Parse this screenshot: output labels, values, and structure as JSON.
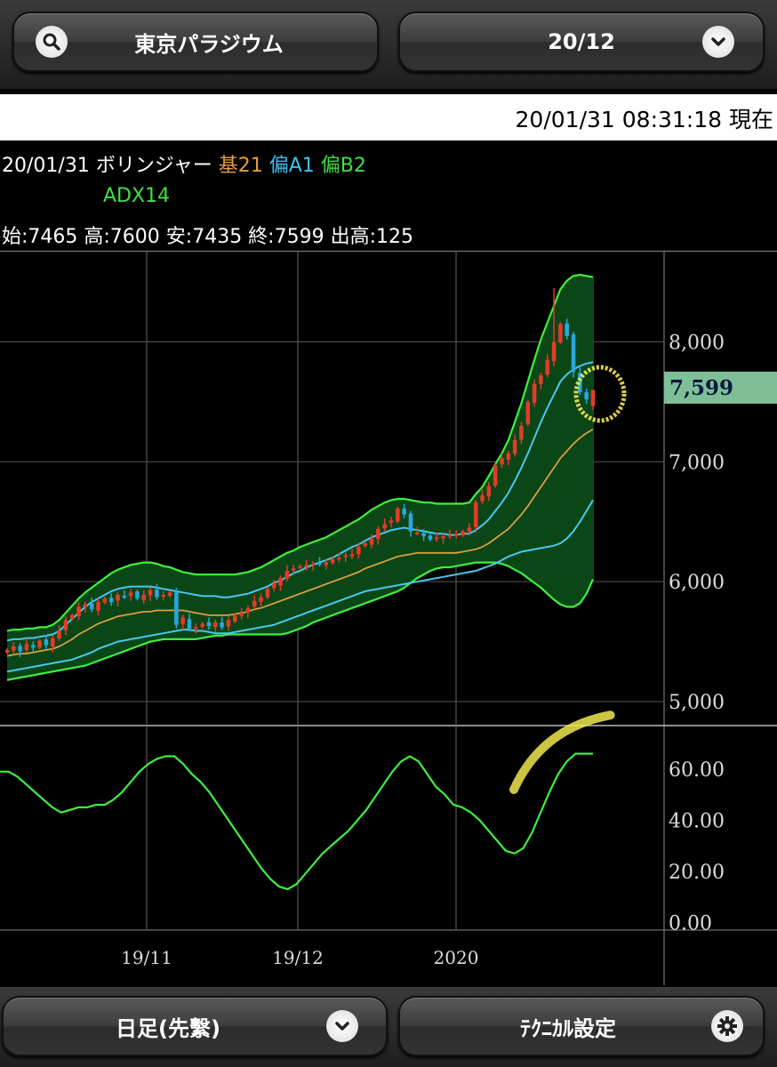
{
  "header": {
    "stock_name": "東京パラジウム",
    "contract": "20/12",
    "search_icon": "search-icon",
    "dropdown_icon": "chevron-down-icon"
  },
  "timestamp": {
    "text": "20/01/31 08:31:18 現在"
  },
  "legend": {
    "date": "20/01/31",
    "indicator": "ボリンジャー",
    "base": "基21",
    "dev_a": "偏A1",
    "dev_b": "偏B2",
    "sub": "ADX14",
    "ohlc": "始:7465 高:7600 安:7435 終:7599 出高:125",
    "colors": {
      "base": "#e0a040",
      "dev_a": "#40c0f0",
      "dev_b": "#40e040",
      "sub": "#40e040"
    }
  },
  "chart_data": [
    {
      "type": "candlestick-bollinger",
      "price_axis_ticks": [
        "8,000",
        "7,000",
        "6,000",
        "5,000"
      ],
      "ylim": [
        4800,
        8760
      ],
      "last_price": "7,599",
      "x_ticks": [
        "19/11",
        "19/12",
        "2020"
      ],
      "last_candle": {
        "open": 7465,
        "high": 7600,
        "low": 7435,
        "close": 7599
      },
      "closes": [
        5430,
        5460,
        5420,
        5480,
        5450,
        5510,
        5470,
        5530,
        5590,
        5680,
        5720,
        5790,
        5810,
        5770,
        5830,
        5860,
        5830,
        5890,
        5880,
        5910,
        5860,
        5890,
        5930,
        5870,
        5890,
        5910,
        5640,
        5700,
        5610,
        5620,
        5650,
        5630,
        5660,
        5620,
        5680,
        5720,
        5740,
        5780,
        5840,
        5870,
        5940,
        5980,
        6030,
        6090,
        6110,
        6130,
        6140,
        6150,
        6150,
        6160,
        6190,
        6200,
        6220,
        6230,
        6290,
        6320,
        6360,
        6440,
        6480,
        6510,
        6610,
        6560,
        6420,
        6410,
        6380,
        6350,
        6370,
        6380,
        6390,
        6400,
        6420,
        6450,
        6660,
        6720,
        6800,
        6970,
        7030,
        7070,
        7180,
        7300,
        7500,
        7650,
        7720,
        7850,
        8000,
        8150,
        8050,
        7750,
        7580,
        7520,
        7599
      ],
      "upper_band": [
        5590,
        5600,
        5600,
        5610,
        5610,
        5620,
        5620,
        5640,
        5680,
        5740,
        5800,
        5860,
        5910,
        5950,
        5990,
        6030,
        6070,
        6100,
        6120,
        6140,
        6150,
        6160,
        6160,
        6150,
        6130,
        6120,
        6100,
        6080,
        6070,
        6060,
        6060,
        6060,
        6060,
        6060,
        6060,
        6060,
        6070,
        6080,
        6100,
        6120,
        6150,
        6180,
        6210,
        6240,
        6260,
        6290,
        6310,
        6330,
        6350,
        6370,
        6400,
        6430,
        6460,
        6490,
        6520,
        6560,
        6600,
        6630,
        6660,
        6680,
        6690,
        6690,
        6680,
        6670,
        6660,
        6660,
        6650,
        6650,
        6650,
        6650,
        6650,
        6660,
        6730,
        6790,
        6880,
        6980,
        7070,
        7180,
        7330,
        7490,
        7670,
        7850,
        8020,
        8160,
        8300,
        8440,
        8510,
        8550,
        8560,
        8550,
        8540
      ],
      "upper1": [
        5510,
        5520,
        5520,
        5530,
        5530,
        5540,
        5550,
        5560,
        5590,
        5640,
        5690,
        5740,
        5790,
        5830,
        5860,
        5890,
        5920,
        5940,
        5950,
        5960,
        5960,
        5960,
        5960,
        5950,
        5940,
        5930,
        5920,
        5910,
        5900,
        5890,
        5880,
        5880,
        5880,
        5870,
        5870,
        5880,
        5890,
        5900,
        5920,
        5940,
        5960,
        5990,
        6010,
        6040,
        6070,
        6090,
        6120,
        6140,
        6160,
        6180,
        6200,
        6230,
        6260,
        6290,
        6310,
        6340,
        6370,
        6390,
        6410,
        6430,
        6440,
        6450,
        6440,
        6430,
        6420,
        6410,
        6400,
        6400,
        6390,
        6390,
        6400,
        6400,
        6430,
        6470,
        6520,
        6590,
        6660,
        6740,
        6840,
        6950,
        7070,
        7200,
        7330,
        7450,
        7560,
        7670,
        7730,
        7770,
        7800,
        7820,
        7830
      ],
      "middle": [
        5380,
        5390,
        5400,
        5400,
        5410,
        5420,
        5430,
        5440,
        5460,
        5490,
        5520,
        5560,
        5590,
        5620,
        5650,
        5670,
        5690,
        5710,
        5720,
        5730,
        5740,
        5750,
        5750,
        5760,
        5760,
        5760,
        5760,
        5760,
        5750,
        5740,
        5730,
        5720,
        5720,
        5720,
        5720,
        5730,
        5740,
        5750,
        5770,
        5780,
        5800,
        5820,
        5840,
        5860,
        5880,
        5900,
        5920,
        5940,
        5960,
        5980,
        6000,
        6020,
        6040,
        6060,
        6080,
        6110,
        6130,
        6150,
        6170,
        6190,
        6210,
        6220,
        6230,
        6240,
        6240,
        6240,
        6240,
        6240,
        6240,
        6240,
        6250,
        6260,
        6270,
        6290,
        6320,
        6360,
        6400,
        6440,
        6500,
        6560,
        6630,
        6710,
        6790,
        6870,
        6950,
        7030,
        7090,
        7150,
        7200,
        7240,
        7270
      ],
      "lower1": [
        5250,
        5260,
        5270,
        5280,
        5290,
        5300,
        5310,
        5320,
        5330,
        5340,
        5350,
        5370,
        5390,
        5410,
        5440,
        5460,
        5480,
        5500,
        5510,
        5520,
        5530,
        5540,
        5550,
        5560,
        5570,
        5580,
        5590,
        5600,
        5600,
        5590,
        5590,
        5580,
        5570,
        5570,
        5570,
        5580,
        5590,
        5600,
        5610,
        5620,
        5630,
        5640,
        5660,
        5680,
        5700,
        5720,
        5740,
        5760,
        5780,
        5800,
        5820,
        5840,
        5860,
        5880,
        5900,
        5920,
        5930,
        5940,
        5950,
        5960,
        5970,
        5980,
        5990,
        6000,
        6010,
        6020,
        6030,
        6040,
        6050,
        6060,
        6070,
        6080,
        6090,
        6110,
        6130,
        6150,
        6180,
        6210,
        6230,
        6250,
        6260,
        6270,
        6280,
        6290,
        6300,
        6320,
        6360,
        6420,
        6500,
        6590,
        6680
      ],
      "lower_band": [
        5180,
        5190,
        5200,
        5210,
        5220,
        5230,
        5240,
        5250,
        5260,
        5270,
        5280,
        5290,
        5300,
        5320,
        5340,
        5360,
        5380,
        5400,
        5420,
        5440,
        5460,
        5480,
        5500,
        5510,
        5520,
        5520,
        5520,
        5520,
        5520,
        5520,
        5530,
        5540,
        5550,
        5550,
        5560,
        5560,
        5560,
        5560,
        5560,
        5560,
        5560,
        5560,
        5560,
        5570,
        5590,
        5610,
        5630,
        5660,
        5680,
        5700,
        5720,
        5740,
        5760,
        5780,
        5800,
        5820,
        5840,
        5860,
        5880,
        5900,
        5920,
        5950,
        5990,
        6030,
        6060,
        6090,
        6110,
        6120,
        6120,
        6130,
        6140,
        6150,
        6160,
        6160,
        6160,
        6160,
        6150,
        6130,
        6100,
        6070,
        6030,
        5990,
        5950,
        5900,
        5850,
        5810,
        5790,
        5790,
        5820,
        5900,
        6020
      ]
    },
    {
      "type": "line",
      "name": "ADX14",
      "ticks": [
        "60.00",
        "40.00",
        "20.00",
        "0.00"
      ],
      "ylim": [
        -3,
        77
      ],
      "values": [
        59,
        59,
        57,
        54,
        51,
        48,
        45,
        43,
        44,
        45,
        45,
        46,
        46,
        48,
        51,
        55,
        59,
        62,
        64,
        65,
        65,
        62,
        58,
        55,
        51,
        46,
        41,
        36,
        31,
        26,
        21,
        17,
        14,
        13,
        15,
        19,
        23,
        27,
        30,
        33,
        36,
        40,
        44,
        49,
        54,
        59,
        63,
        65,
        63,
        58,
        53,
        50,
        46,
        45,
        43,
        40,
        36,
        32,
        28,
        27,
        29,
        35,
        43,
        51,
        58,
        63,
        66,
        66,
        66
      ]
    }
  ]
}
